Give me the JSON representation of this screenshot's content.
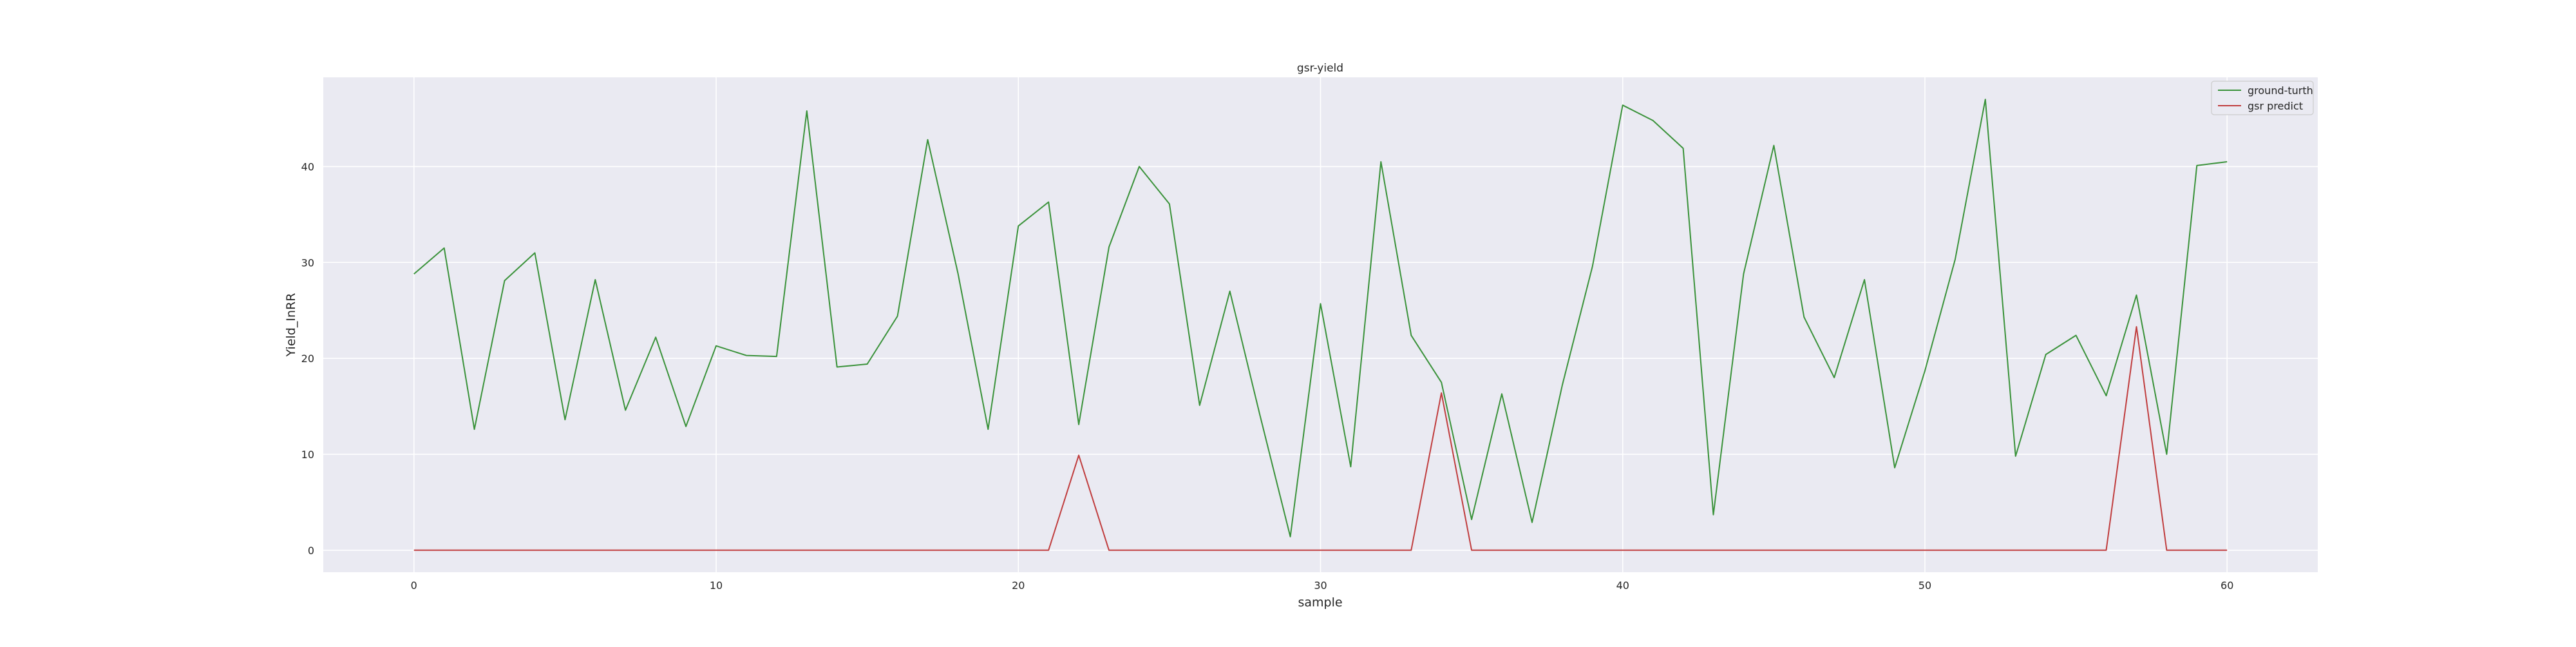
{
  "chart_data": {
    "type": "line",
    "title": "gsr-yield",
    "xlabel": "sample",
    "ylabel": "Yield_InRR",
    "xlim": [
      -3,
      63
    ],
    "ylim": [
      -2.3,
      49.3
    ],
    "xticks": [
      0,
      10,
      20,
      30,
      40,
      50,
      60
    ],
    "yticks": [
      0,
      10,
      20,
      30,
      40
    ],
    "grid": true,
    "legend_position": "top-right",
    "x": [
      0,
      1,
      2,
      3,
      4,
      5,
      6,
      7,
      8,
      9,
      10,
      11,
      12,
      13,
      14,
      15,
      16,
      17,
      18,
      19,
      20,
      21,
      22,
      23,
      24,
      25,
      26,
      27,
      28,
      29,
      30,
      31,
      32,
      33,
      34,
      35,
      36,
      37,
      38,
      39,
      40,
      41,
      42,
      43,
      44,
      45,
      46,
      47,
      48,
      49,
      50,
      51,
      52,
      53,
      54,
      55,
      56,
      57,
      58,
      59,
      60
    ],
    "series": [
      {
        "name": "ground-turth",
        "color": "#3a923a",
        "values": [
          28.8,
          31.5,
          12.6,
          28.1,
          31.0,
          13.6,
          28.2,
          14.6,
          22.2,
          12.9,
          21.3,
          20.3,
          20.2,
          45.8,
          19.1,
          19.4,
          24.4,
          42.8,
          28.9,
          12.6,
          33.8,
          36.3,
          13.1,
          31.6,
          40.0,
          36.1,
          15.1,
          27.0,
          14.0,
          1.4,
          25.7,
          8.7,
          40.5,
          22.4,
          17.5,
          3.2,
          16.3,
          2.9,
          17.2,
          29.6,
          46.4,
          44.8,
          41.9,
          3.7,
          28.8,
          42.2,
          24.3,
          18.0,
          28.2,
          8.6,
          18.7,
          30.3,
          47.0,
          9.8,
          20.4,
          22.4,
          16.1,
          26.6,
          10.0,
          40.1,
          40.5
        ]
      },
      {
        "name": "gsr predict",
        "color": "#c03d3e",
        "values": [
          0,
          0,
          0,
          0,
          0,
          0,
          0,
          0,
          0,
          0,
          0,
          0,
          0,
          0,
          0,
          0,
          0,
          0,
          0,
          0,
          0,
          0,
          9.9,
          0,
          0,
          0,
          0,
          0,
          0,
          0,
          0,
          0,
          0,
          0,
          16.4,
          0,
          0,
          0,
          0,
          0,
          0,
          0,
          0,
          0,
          0,
          0,
          0,
          0,
          0,
          0,
          0,
          0,
          0,
          0,
          0,
          0,
          0,
          23.3,
          0,
          0,
          0
        ]
      }
    ]
  },
  "colors": {
    "plot_background": "#eaeaf2",
    "grid": "#ffffff"
  }
}
